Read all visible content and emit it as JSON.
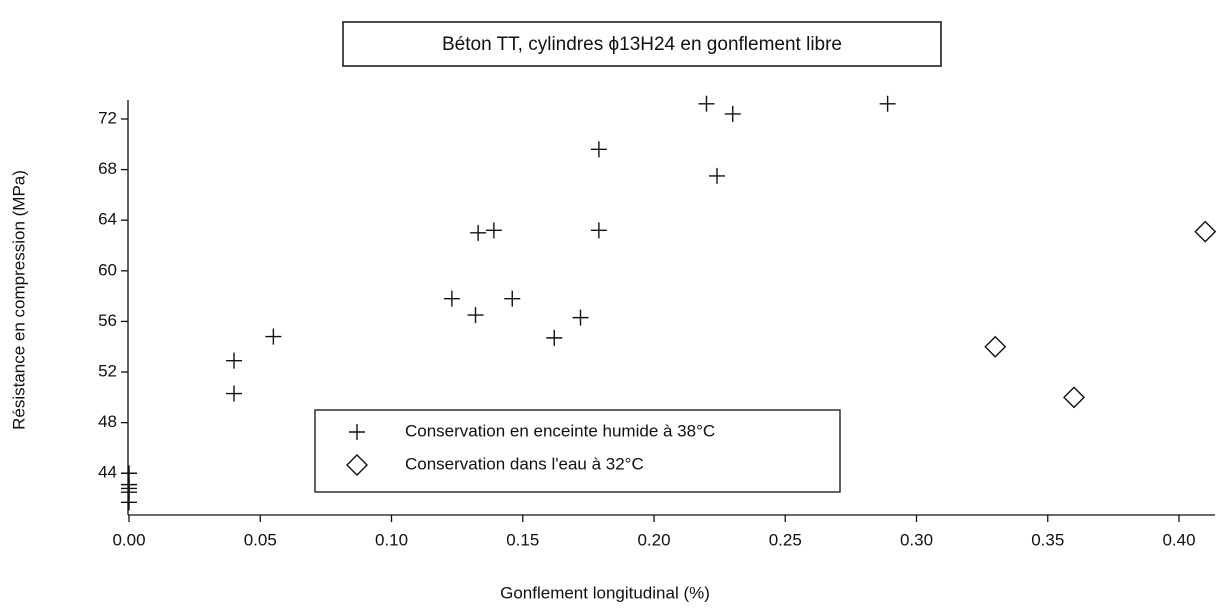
{
  "chart_data": {
    "type": "scatter",
    "title": "Béton TT, cylindres ϕ13H24  en gonflement libre",
    "x_label": "Gonflement longitudinal (%)",
    "y_label": "Résistance en compression (MPa)",
    "xlim": [
      0,
      0.413
    ],
    "ylim": [
      40.7,
      73.5
    ],
    "xticks": [
      {
        "value": 0,
        "label": "0.00"
      },
      {
        "value": 0.05,
        "label": "0.05"
      },
      {
        "value": 0.1,
        "label": "0.10"
      },
      {
        "value": 0.15,
        "label": "0.15"
      },
      {
        "value": 0.2,
        "label": "0.20"
      },
      {
        "value": 0.25,
        "label": "0.25"
      },
      {
        "value": 0.3,
        "label": "0.30"
      },
      {
        "value": 0.35,
        "label": "0.35"
      },
      {
        "value": 0.4,
        "label": "0.40"
      }
    ],
    "yticks": [
      44,
      48,
      52,
      56,
      60,
      64,
      68,
      72
    ],
    "series": [
      {
        "name": "Conservation en enceinte humide à 38°C",
        "marker": "plus",
        "color": "#111111",
        "x": [
          0,
          0,
          0,
          0,
          0,
          0.04,
          0.04,
          0.055,
          0.123,
          0.132,
          0.133,
          0.139,
          0.146,
          0.162,
          0.172,
          0.179,
          0.179,
          0.22,
          0.224,
          0.23,
          0.289
        ],
        "values": [
          44,
          43.1,
          42.8,
          42.5,
          41.7,
          52.9,
          50.3,
          54.8,
          57.8,
          56.5,
          63.0,
          63.2,
          57.8,
          54.7,
          56.3,
          63.2,
          69.6,
          73.2,
          67.5,
          72.4,
          73.2
        ]
      },
      {
        "name": "Conservation dans l'eau à 32°C",
        "marker": "diamond",
        "color": "#111111",
        "x": [
          0.33,
          0.36,
          0.41
        ],
        "values": [
          54.0,
          50.0,
          63.1
        ]
      }
    ]
  }
}
